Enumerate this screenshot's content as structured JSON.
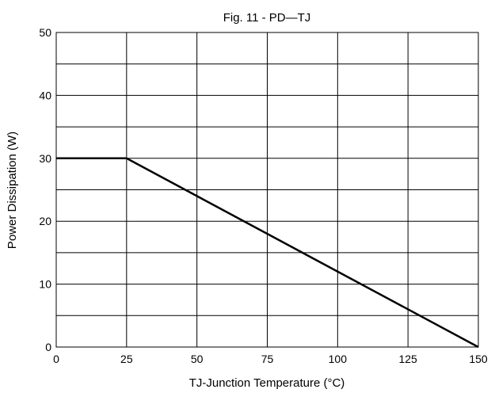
{
  "chart_data": {
    "type": "line",
    "title": "Fig. 11 - PD—TJ",
    "xlabel": "TJ-Junction Temperature (°C)",
    "ylabel": "Power Dissipation  (W)",
    "xlim": [
      0,
      150
    ],
    "ylim": [
      0,
      50
    ],
    "xticks": [
      0,
      25,
      50,
      75,
      100,
      125,
      150
    ],
    "yticks": [
      0,
      10,
      20,
      30,
      40,
      50
    ],
    "x_grid": [
      0,
      25,
      50,
      75,
      100,
      125,
      150
    ],
    "y_grid": [
      0,
      5,
      10,
      15,
      20,
      25,
      30,
      35,
      40,
      45,
      50
    ],
    "grid": true,
    "series": [
      {
        "x": [
          0,
          25,
          150
        ],
        "y": [
          30,
          30,
          0
        ],
        "color": "#000000"
      }
    ]
  }
}
